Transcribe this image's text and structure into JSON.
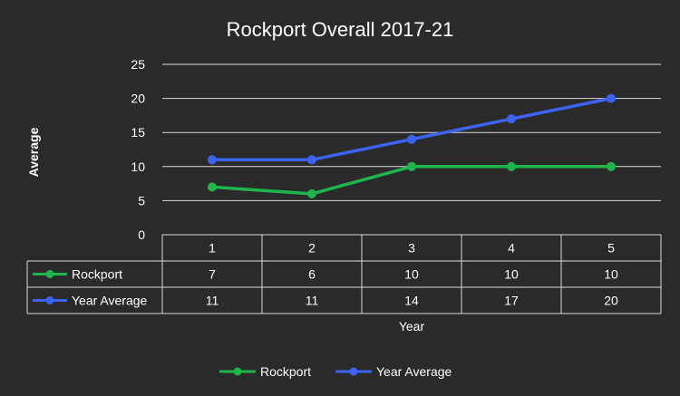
{
  "chart_data": {
    "type": "line",
    "title": "Rockport Overall 2017-21",
    "xlabel": "Year",
    "ylabel": "Average",
    "categories": [
      "1",
      "2",
      "3",
      "4",
      "5"
    ],
    "ylim": [
      0,
      25
    ],
    "yticks": [
      "0",
      "5",
      "10",
      "15",
      "20",
      "25"
    ],
    "grid": true,
    "legend_position": "bottom",
    "data_table": true,
    "series": [
      {
        "name": "Rockport",
        "values": [
          7,
          6,
          10,
          10,
          10
        ],
        "color": "#1fb54a"
      },
      {
        "name": "Year Average",
        "values": [
          11,
          11,
          14,
          17,
          20
        ],
        "color": "#3d63f5"
      }
    ]
  }
}
